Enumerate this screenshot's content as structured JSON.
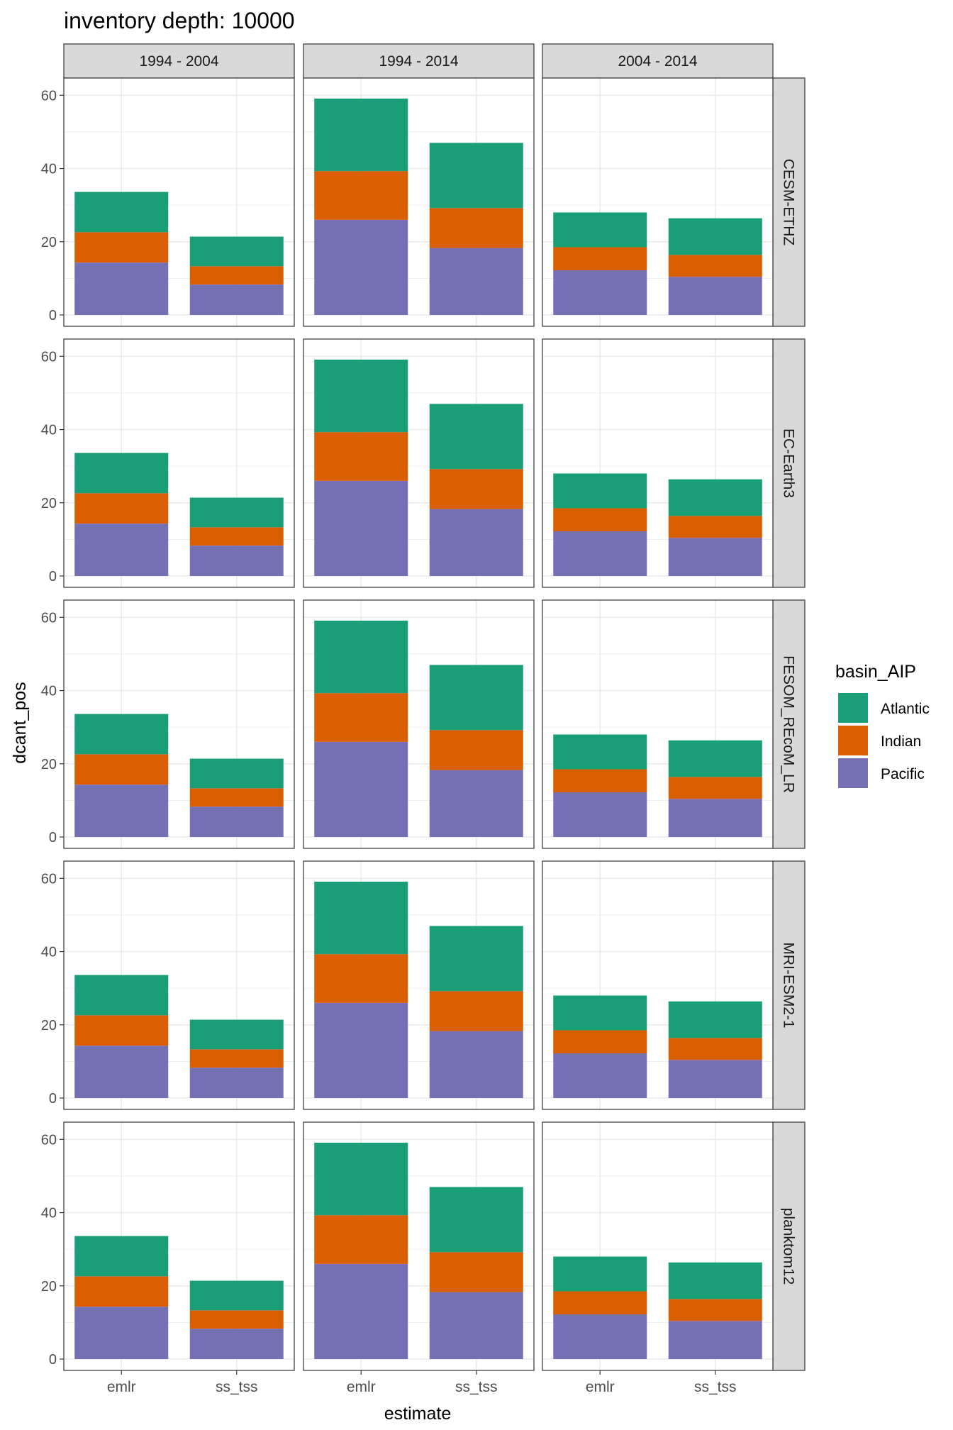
{
  "chart_data": {
    "type": "bar",
    "stacked": true,
    "title": "inventory depth: 10000",
    "xlabel": "estimate",
    "ylabel": "dcant_pos",
    "ylim": [
      0,
      62
    ],
    "yticks": [
      0,
      20,
      40,
      60
    ],
    "grid": true,
    "legend": {
      "title": "basin_AIP",
      "placement": "right",
      "entries": [
        {
          "name": "Atlantic",
          "color": "#1B9E77"
        },
        {
          "name": "Indian",
          "color": "#D95F02"
        },
        {
          "name": "Pacific",
          "color": "#7570B3"
        }
      ]
    },
    "stack_order_bottom_to_top": [
      "Pacific",
      "Indian",
      "Atlantic"
    ],
    "categories": [
      "emlr",
      "ss_tss"
    ],
    "col_facets": [
      "1994 - 2004",
      "1994 - 2014",
      "2004 - 2014"
    ],
    "row_facets": [
      "CESM-ETHZ",
      "EC-Earth3",
      "FESOM_REcoM_LR",
      "MRI-ESM2-1",
      "planktom12"
    ],
    "facet_values": {
      "1994 - 2004": {
        "emlr": {
          "Pacific": 14.3,
          "Indian": 8.3,
          "Atlantic": 11.0
        },
        "ss_tss": {
          "Pacific": 8.3,
          "Indian": 5.0,
          "Atlantic": 8.1
        }
      },
      "1994 - 2014": {
        "emlr": {
          "Pacific": 26.0,
          "Indian": 13.3,
          "Atlantic": 19.8
        },
        "ss_tss": {
          "Pacific": 18.3,
          "Indian": 10.9,
          "Atlantic": 17.8
        }
      },
      "2004 - 2014": {
        "emlr": {
          "Pacific": 12.2,
          "Indian": 6.3,
          "Atlantic": 9.5
        },
        "ss_tss": {
          "Pacific": 10.4,
          "Indian": 6.0,
          "Atlantic": 10.0
        }
      }
    }
  }
}
